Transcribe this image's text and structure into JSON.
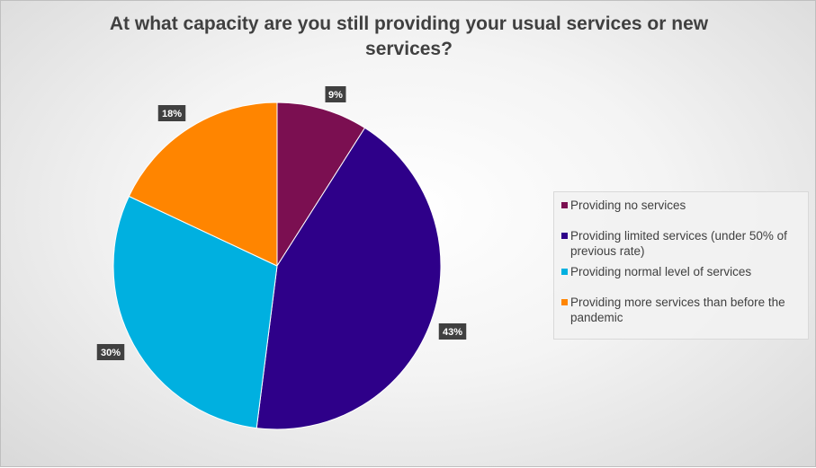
{
  "chart_data": {
    "type": "pie",
    "title": "At what capacity are you still providing your usual services or new services?",
    "categories": [
      "Providing no services",
      "Providing limited services (under 50% of previous rate)",
      "Providing normal level of services",
      "Providing more services than before the pandemic"
    ],
    "values": [
      9,
      43,
      30,
      18
    ],
    "data_labels": [
      "9%",
      "43%",
      "30%",
      "18%"
    ],
    "colors": [
      "#7b0f51",
      "#2e0089",
      "#00b0e0",
      "#ff8500"
    ],
    "legend_position": "right"
  }
}
